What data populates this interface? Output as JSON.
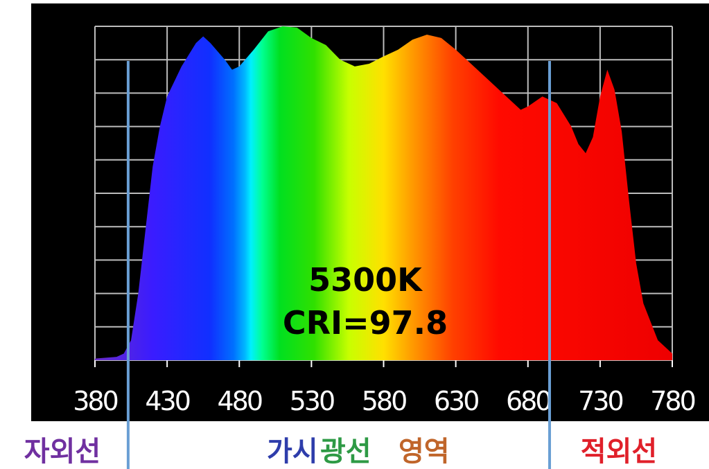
{
  "chart_data": {
    "type": "area",
    "x": [
      380,
      395,
      400,
      405,
      410,
      415,
      420,
      425,
      430,
      440,
      450,
      455,
      460,
      470,
      475,
      480,
      490,
      500,
      510,
      520,
      530,
      540,
      550,
      560,
      570,
      580,
      590,
      600,
      610,
      620,
      630,
      640,
      650,
      660,
      670,
      675,
      680,
      690,
      700,
      710,
      715,
      720,
      725,
      730,
      735,
      740,
      745,
      750,
      755,
      760,
      770,
      780
    ],
    "values": [
      0.5,
      1,
      2,
      6,
      20,
      39,
      58,
      70,
      79,
      88,
      95,
      97,
      95,
      90,
      87,
      88,
      93,
      98.5,
      100,
      99.6,
      96.5,
      94.4,
      90,
      88,
      88.8,
      91,
      93,
      96,
      97.5,
      96.5,
      93,
      89,
      85,
      81,
      77,
      75,
      76,
      79,
      77,
      70,
      64.7,
      62,
      66.8,
      79,
      87,
      81,
      68.5,
      48,
      29,
      17,
      6,
      2
    ],
    "xlim": [
      380,
      780
    ],
    "xticks": [
      380,
      430,
      480,
      530,
      580,
      630,
      680,
      730,
      780
    ],
    "ylim": [
      0,
      100
    ],
    "yticks": [
      0,
      10,
      20,
      30,
      40,
      50,
      60,
      70,
      80,
      90,
      100
    ],
    "grid": true,
    "annotations": [
      "5300K",
      "CRI=97.8"
    ],
    "boundary_lines": [
      403,
      695
    ],
    "regions": [
      {
        "text": "자외선",
        "color": "#7030a0"
      },
      {
        "text": "가시",
        "color": "#2e3dab"
      },
      {
        "text": "광선",
        "color": "#2e9a45"
      },
      {
        "text": "영역",
        "color": "#c0652a"
      },
      {
        "text": "적외선",
        "color": "#e0202a"
      }
    ]
  }
}
